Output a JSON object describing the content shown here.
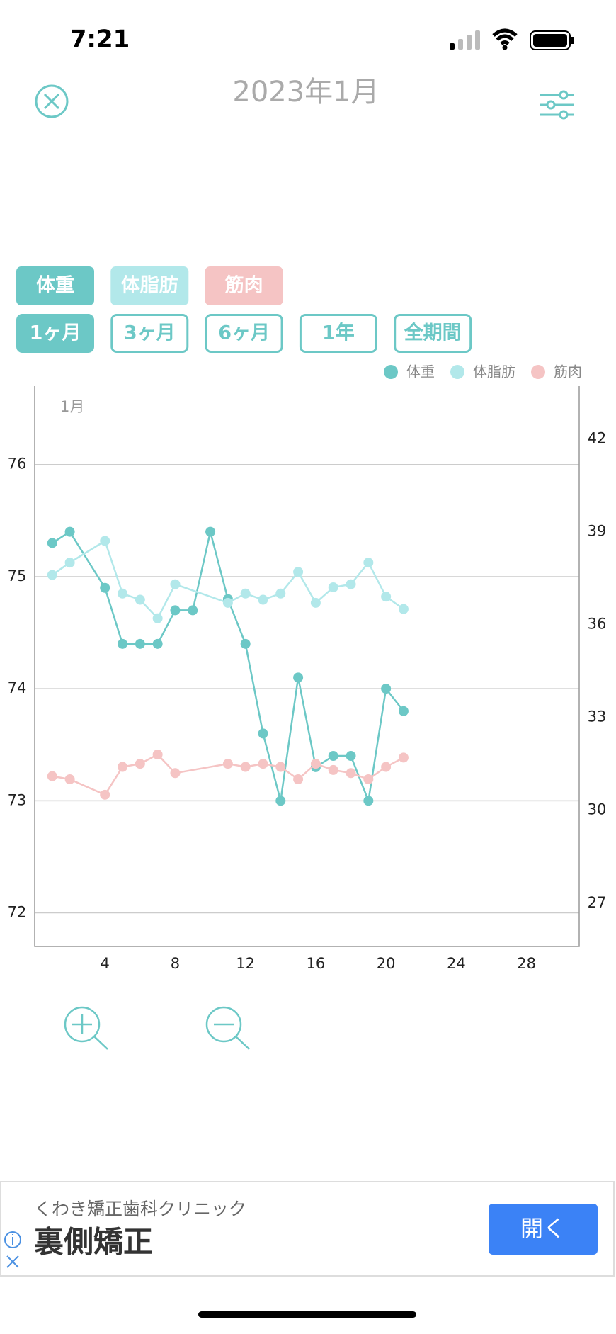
{
  "status_bar": {
    "time": "7:21"
  },
  "header": {
    "title": "2023年1月"
  },
  "filters": {
    "metrics": [
      "体重",
      "体脂肪",
      "筋肉"
    ],
    "periods": [
      "1ヶ月",
      "3ヶ月",
      "6ヶ月",
      "1年",
      "全期間"
    ]
  },
  "chart_data": {
    "type": "line",
    "period_label": "1月",
    "xlim": [
      0,
      31
    ],
    "xticks": [
      4,
      8,
      12,
      16,
      20,
      24,
      28
    ],
    "ylim": [
      71.7,
      76.7
    ],
    "yticks": [
      72,
      73,
      74,
      75,
      76
    ],
    "y2lim": [
      25.6,
      43.7
    ],
    "y2ticks": [
      27,
      30,
      33,
      36,
      39,
      42
    ],
    "grid": true,
    "legend": "top-right",
    "series": [
      {
        "name": "体重",
        "color": "#6cc8c6",
        "axis": "y",
        "x": [
          1,
          2,
          4,
          5,
          6,
          7,
          8,
          9,
          10,
          11,
          12,
          13,
          14,
          15,
          16,
          17,
          18,
          19,
          20,
          21
        ],
        "values": [
          75.3,
          75.4,
          74.9,
          74.4,
          74.4,
          74.4,
          74.7,
          74.7,
          75.4,
          74.8,
          74.4,
          73.6,
          73.0,
          74.1,
          73.3,
          73.4,
          73.4,
          73.0,
          74.0,
          73.8
        ]
      },
      {
        "name": "体脂肪",
        "color": "#b2e8ea",
        "axis": "y2",
        "x": [
          1,
          2,
          4,
          5,
          6,
          7,
          8,
          11,
          12,
          13,
          14,
          15,
          16,
          17,
          18,
          19,
          20,
          21
        ],
        "values": [
          37.6,
          38.0,
          38.7,
          37.0,
          36.8,
          36.2,
          37.3,
          36.7,
          37.0,
          36.8,
          37.0,
          37.7,
          36.7,
          37.2,
          37.3,
          38.0,
          36.9,
          36.5
        ]
      },
      {
        "name": "筋肉",
        "color": "#f5c4c4",
        "axis": "y2",
        "x": [
          1,
          2,
          4,
          5,
          6,
          7,
          8,
          11,
          12,
          13,
          14,
          15,
          16,
          17,
          18,
          19,
          20,
          21
        ],
        "values": [
          31.1,
          31.0,
          30.5,
          31.4,
          31.5,
          31.8,
          31.2,
          31.5,
          31.4,
          31.5,
          31.4,
          31.0,
          31.5,
          31.3,
          31.2,
          31.0,
          31.4,
          31.7
        ]
      }
    ]
  },
  "ad": {
    "advertiser": "くわき矯正歯科クリニック",
    "title": "裏側矯正",
    "button": "開く"
  }
}
